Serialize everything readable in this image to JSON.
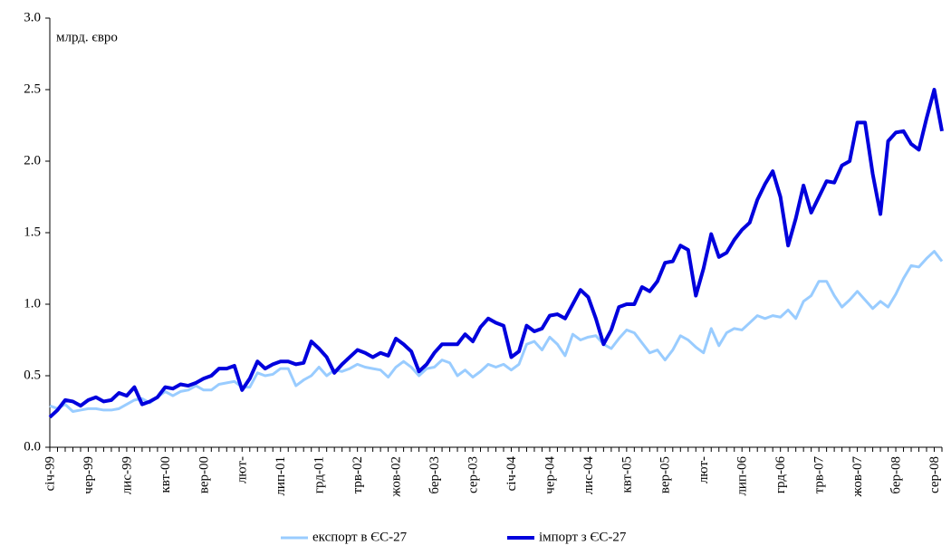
{
  "chart_data": {
    "type": "line",
    "unit_label": "млрд. євро",
    "categories": [
      "січ-99",
      null,
      null,
      null,
      null,
      "чер-99",
      null,
      null,
      null,
      null,
      "лис-99",
      null,
      null,
      null,
      null,
      "квт-00",
      null,
      null,
      null,
      null,
      "вер-00",
      null,
      null,
      null,
      null,
      "лют-",
      null,
      null,
      null,
      null,
      "лип-01",
      null,
      null,
      null,
      null,
      "грд-01",
      null,
      null,
      null,
      null,
      "трв-02",
      null,
      null,
      null,
      null,
      "жов-02",
      null,
      null,
      null,
      null,
      "бер-03",
      null,
      null,
      null,
      null,
      "сер-03",
      null,
      null,
      null,
      null,
      "січ-04",
      null,
      null,
      null,
      null,
      "чер-04",
      null,
      null,
      null,
      null,
      "лис-04",
      null,
      null,
      null,
      null,
      "квт-05",
      null,
      null,
      null,
      null,
      "вер-05",
      null,
      null,
      null,
      null,
      "лют-",
      null,
      null,
      null,
      null,
      "лип-06",
      null,
      null,
      null,
      null,
      "грд-06",
      null,
      null,
      null,
      null,
      "трв-07",
      null,
      null,
      null,
      null,
      "жов-07",
      null,
      null,
      null,
      null,
      "бер-08",
      null,
      null,
      null,
      null,
      "сер-08",
      null
    ],
    "series": [
      {
        "name": "експорт в ЄС-27",
        "color": "#99ccff",
        "width": 3,
        "values": [
          0.29,
          0.27,
          0.3,
          0.25,
          0.26,
          0.27,
          0.27,
          0.26,
          0.26,
          0.27,
          0.3,
          0.33,
          0.34,
          0.31,
          0.35,
          0.39,
          0.36,
          0.39,
          0.4,
          0.43,
          0.4,
          0.4,
          0.44,
          0.45,
          0.46,
          0.42,
          0.42,
          0.52,
          0.5,
          0.51,
          0.55,
          0.55,
          0.43,
          0.47,
          0.5,
          0.56,
          0.5,
          0.54,
          0.53,
          0.55,
          0.58,
          0.56,
          0.55,
          0.54,
          0.49,
          0.56,
          0.6,
          0.56,
          0.5,
          0.55,
          0.56,
          0.61,
          0.59,
          0.5,
          0.54,
          0.49,
          0.53,
          0.58,
          0.56,
          0.58,
          0.54,
          0.58,
          0.72,
          0.74,
          0.68,
          0.77,
          0.72,
          0.64,
          0.79,
          0.75,
          0.77,
          0.78,
          0.72,
          0.69,
          0.76,
          0.82,
          0.8,
          0.73,
          0.66,
          0.68,
          0.61,
          0.68,
          0.78,
          0.75,
          0.7,
          0.66,
          0.83,
          0.71,
          0.8,
          0.83,
          0.82,
          0.87,
          0.92,
          0.9,
          0.92,
          0.91,
          0.96,
          0.9,
          1.02,
          1.06,
          1.16,
          1.16,
          1.06,
          0.98,
          1.03,
          1.09,
          1.03,
          0.97,
          1.02,
          0.98,
          1.07,
          1.18,
          1.27,
          1.26,
          1.32,
          1.37,
          1.3
        ]
      },
      {
        "name": "імпорт з ЄС-27",
        "color": "#0000dd",
        "width": 4,
        "values": [
          0.21,
          0.26,
          0.33,
          0.32,
          0.29,
          0.33,
          0.35,
          0.32,
          0.33,
          0.38,
          0.36,
          0.42,
          0.3,
          0.32,
          0.35,
          0.42,
          0.41,
          0.44,
          0.43,
          0.45,
          0.48,
          0.5,
          0.55,
          0.55,
          0.57,
          0.4,
          0.48,
          0.6,
          0.55,
          0.58,
          0.6,
          0.6,
          0.58,
          0.59,
          0.74,
          0.69,
          0.63,
          0.52,
          0.58,
          0.63,
          0.68,
          0.66,
          0.63,
          0.66,
          0.64,
          0.76,
          0.72,
          0.67,
          0.53,
          0.58,
          0.66,
          0.72,
          0.72,
          0.72,
          0.79,
          0.74,
          0.84,
          0.9,
          0.87,
          0.85,
          0.63,
          0.67,
          0.85,
          0.81,
          0.83,
          0.92,
          0.93,
          0.9,
          1.0,
          1.1,
          1.05,
          0.9,
          0.72,
          0.82,
          0.98,
          1.0,
          1.0,
          1.12,
          1.09,
          1.16,
          1.29,
          1.3,
          1.41,
          1.38,
          1.06,
          1.25,
          1.49,
          1.33,
          1.36,
          1.45,
          1.52,
          1.57,
          1.73,
          1.84,
          1.93,
          1.75,
          1.41,
          1.6,
          1.83,
          1.64,
          1.75,
          1.86,
          1.85,
          1.97,
          2.0,
          2.27,
          2.27,
          1.91,
          1.63,
          2.14,
          2.2,
          2.21,
          2.12,
          2.08,
          2.3,
          2.5,
          2.21
        ]
      }
    ],
    "ylim": [
      0,
      3
    ],
    "yticks": [
      {
        "value": 0,
        "label": "0.0"
      },
      0.5,
      {
        "value": 1,
        "label": "1.0"
      },
      1.5,
      {
        "value": 2,
        "label": "2.0"
      },
      2.5,
      {
        "value": 3,
        "label": "3.0"
      }
    ],
    "grid": false,
    "legend": "bottom"
  }
}
